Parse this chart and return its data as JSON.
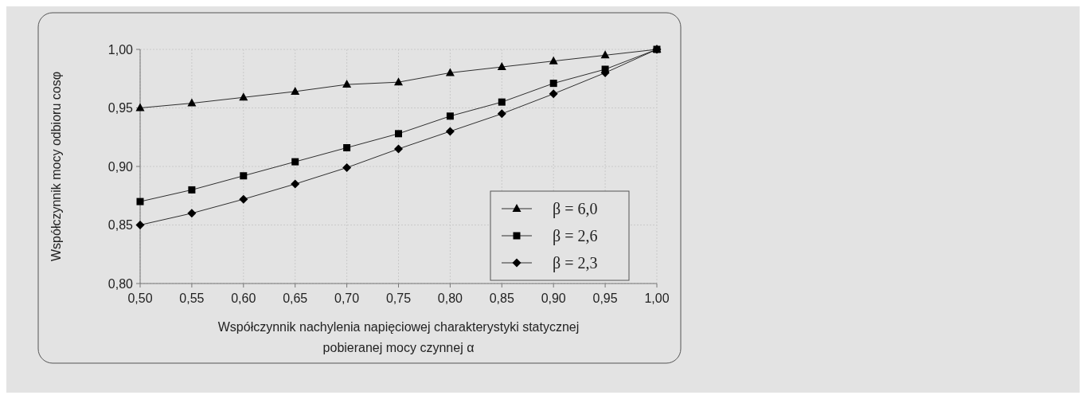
{
  "chart_data": {
    "type": "line",
    "xlabel": "Współczynnik nachylenia napięciowej charakterystyki statycznej\npobieranej mocy czynnej α",
    "ylabel": "Współczynnik mocy odbioru cosφ",
    "x": [
      0.5,
      0.55,
      0.6,
      0.65,
      0.7,
      0.75,
      0.8,
      0.85,
      0.9,
      0.95,
      1.0
    ],
    "series": [
      {
        "name": "β = 6,0",
        "color": "#000000",
        "marker": "triangle",
        "values": [
          0.95,
          0.954,
          0.959,
          0.964,
          0.97,
          0.972,
          0.98,
          0.985,
          0.99,
          0.995,
          1.0
        ]
      },
      {
        "name": "β = 2,6",
        "color": "#000000",
        "marker": "square",
        "values": [
          0.87,
          0.88,
          0.892,
          0.904,
          0.916,
          0.928,
          0.943,
          0.955,
          0.971,
          0.983,
          1.0
        ]
      },
      {
        "name": "β = 2,3",
        "color": "#000000",
        "marker": "diamond",
        "values": [
          0.85,
          0.86,
          0.872,
          0.885,
          0.899,
          0.915,
          0.93,
          0.945,
          0.962,
          0.98,
          1.0
        ]
      }
    ],
    "xlim": [
      0.5,
      1.0
    ],
    "ylim": [
      0.8,
      1.0
    ],
    "xticks": [
      {
        "value": 0.5,
        "label": "0,50"
      },
      {
        "value": 0.55,
        "label": "0,55"
      },
      {
        "value": 0.6,
        "label": "0,60"
      },
      {
        "value": 0.65,
        "label": "0,65"
      },
      {
        "value": 0.7,
        "label": "0,70"
      },
      {
        "value": 0.75,
        "label": "0,75"
      },
      {
        "value": 0.8,
        "label": "0,80"
      },
      {
        "value": 0.85,
        "label": "0,85"
      },
      {
        "value": 0.9,
        "label": "0,90"
      },
      {
        "value": 0.95,
        "label": "0,95"
      },
      {
        "value": 1.0,
        "label": "1,00"
      }
    ],
    "yticks": [
      {
        "value": 0.8,
        "label": "0,80"
      },
      {
        "value": 0.85,
        "label": "0,85"
      },
      {
        "value": 0.9,
        "label": "0,90"
      },
      {
        "value": 0.95,
        "label": "0,95"
      },
      {
        "value": 1.0,
        "label": "1,00"
      }
    ],
    "grid": true,
    "legend": "right",
    "line_style": "solid"
  }
}
